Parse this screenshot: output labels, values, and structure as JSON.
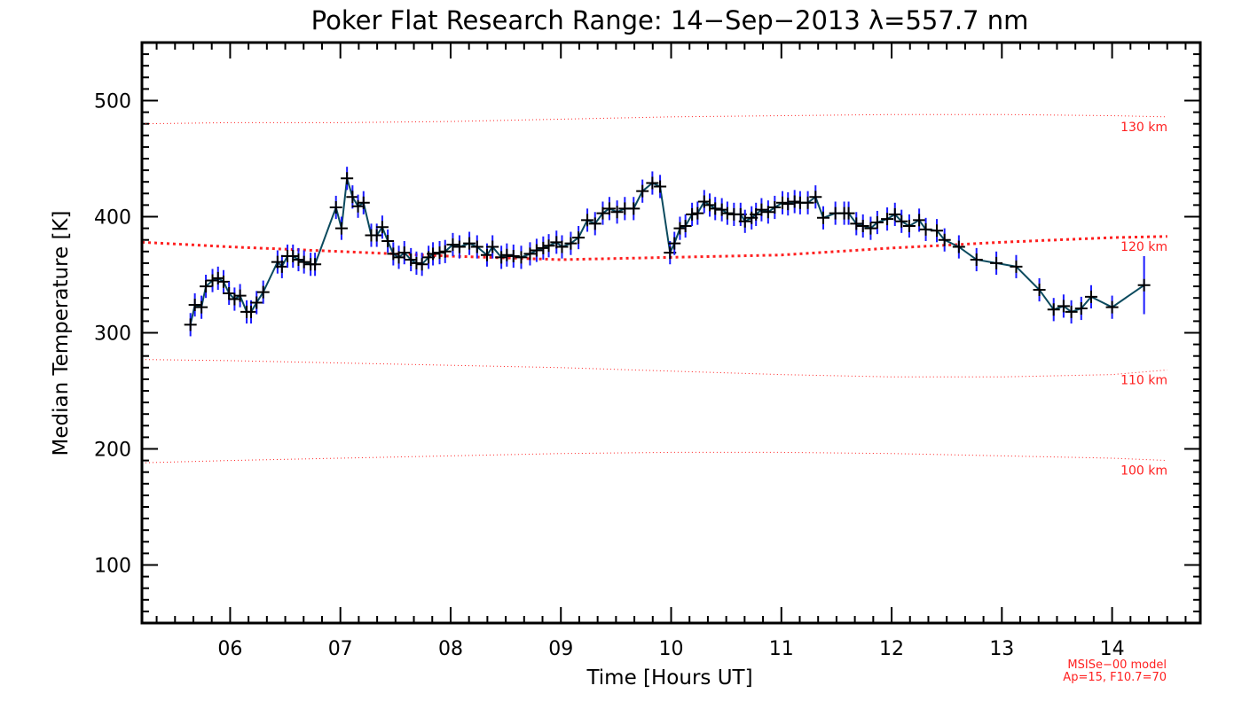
{
  "chart_data": {
    "type": "line",
    "title": "Poker Flat Research Range: 14−Sep−2013 λ=557.7 nm",
    "xlabel": "Time [Hours UT]",
    "ylabel": "Median Temperature [K]",
    "xlim": [
      5.2,
      14.8
    ],
    "ylim": [
      50,
      550
    ],
    "xticks": [
      6,
      7,
      8,
      9,
      10,
      11,
      12,
      13,
      14
    ],
    "xtick_labels": [
      "06",
      "07",
      "08",
      "09",
      "10",
      "11",
      "12",
      "13",
      "14"
    ],
    "yticks": [
      100,
      200,
      300,
      400,
      500
    ],
    "ytick_labels": [
      "100",
      "200",
      "300",
      "400",
      "500"
    ],
    "grid": false,
    "colors": {
      "data_line": "#0b4a5e",
      "marker": "#000000",
      "errorbar": "#1a1aff",
      "model": "#ff2020"
    },
    "series": [
      {
        "name": "Median Temperature",
        "x": [
          5.64,
          5.68,
          5.74,
          5.78,
          5.84,
          5.89,
          5.94,
          5.99,
          6.04,
          6.09,
          6.15,
          6.19,
          6.24,
          6.3,
          6.43,
          6.47,
          6.52,
          6.57,
          6.62,
          6.67,
          6.73,
          6.77,
          6.96,
          7.01,
          7.06,
          7.11,
          7.16,
          7.21,
          7.28,
          7.33,
          7.38,
          7.43,
          7.48,
          7.53,
          7.58,
          7.64,
          7.69,
          7.74,
          7.8,
          7.84,
          7.9,
          7.95,
          8.02,
          8.08,
          8.17,
          8.24,
          8.33,
          8.38,
          8.46,
          8.51,
          8.57,
          8.64,
          8.72,
          8.78,
          8.84,
          8.89,
          8.96,
          9.01,
          9.09,
          9.16,
          9.24,
          9.31,
          9.38,
          9.44,
          9.51,
          9.58,
          9.66,
          9.74,
          9.83,
          9.9,
          9.99,
          10.03,
          10.08,
          10.13,
          10.19,
          10.24,
          10.3,
          10.35,
          10.4,
          10.46,
          10.51,
          10.57,
          10.63,
          10.67,
          10.73,
          10.77,
          10.82,
          10.88,
          10.94,
          11.01,
          11.06,
          11.12,
          11.17,
          11.24,
          11.31,
          11.38,
          11.49,
          11.57,
          11.61,
          11.68,
          11.74,
          11.81,
          11.87,
          11.96,
          12.03,
          12.09,
          12.16,
          12.25,
          12.31,
          12.41,
          12.48,
          12.61,
          12.77,
          12.95,
          13.13,
          13.34,
          13.47,
          13.56,
          13.63,
          13.72,
          13.81,
          14.0,
          14.29
        ],
        "y": [
          307,
          324,
          322,
          340,
          345,
          347,
          344,
          334,
          329,
          332,
          318,
          318,
          326,
          335,
          361,
          357,
          366,
          366,
          363,
          361,
          359,
          359,
          408,
          390,
          433,
          417,
          409,
          412,
          384,
          384,
          391,
          379,
          368,
          365,
          369,
          363,
          360,
          359,
          365,
          368,
          369,
          370,
          376,
          374,
          377,
          374,
          367,
          374,
          365,
          367,
          366,
          365,
          368,
          371,
          373,
          375,
          378,
          374,
          377,
          382,
          397,
          394,
          403,
          407,
          404,
          407,
          407,
          422,
          429,
          426,
          369,
          377,
          390,
          392,
          402,
          403,
          413,
          410,
          407,
          406,
          403,
          402,
          402,
          396,
          399,
          402,
          406,
          404,
          408,
          412,
          411,
          413,
          412,
          412,
          417,
          399,
          403,
          403,
          403,
          394,
          392,
          390,
          395,
          398,
          402,
          396,
          392,
          397,
          389,
          388,
          380,
          374,
          363,
          360,
          357,
          337,
          320,
          323,
          318,
          321,
          331,
          322,
          341
        ],
        "yerr": [
          10,
          10,
          10,
          10,
          10,
          10,
          10,
          10,
          10,
          10,
          10,
          10,
          10,
          10,
          10,
          10,
          10,
          10,
          10,
          10,
          10,
          10,
          10,
          10,
          10,
          10,
          10,
          10,
          10,
          10,
          10,
          10,
          10,
          10,
          10,
          10,
          10,
          10,
          10,
          10,
          10,
          10,
          10,
          10,
          10,
          10,
          10,
          10,
          10,
          10,
          10,
          10,
          10,
          10,
          10,
          10,
          10,
          10,
          10,
          10,
          10,
          10,
          10,
          10,
          10,
          10,
          10,
          10,
          10,
          10,
          10,
          10,
          10,
          10,
          10,
          10,
          10,
          10,
          10,
          10,
          10,
          10,
          10,
          10,
          10,
          10,
          10,
          10,
          10,
          10,
          10,
          10,
          10,
          10,
          10,
          10,
          10,
          10,
          10,
          10,
          10,
          10,
          10,
          10,
          10,
          10,
          10,
          10,
          10,
          10,
          10,
          10,
          10,
          10,
          10,
          10,
          10,
          10,
          10,
          10,
          10,
          10,
          25
        ]
      }
    ],
    "model_curves": {
      "x": [
        5.2,
        6,
        7,
        8,
        9,
        10,
        11,
        12,
        13,
        14,
        14.5
      ],
      "curves": [
        {
          "label": "130 km",
          "y": [
            480,
            481,
            481,
            482,
            484,
            486,
            487,
            488,
            488,
            487,
            486
          ]
        },
        {
          "label": "120 km",
          "y": [
            378,
            374,
            370,
            366,
            363,
            365,
            367,
            373,
            378,
            382,
            383
          ]
        },
        {
          "label": "110 km",
          "y": [
            277,
            276,
            274,
            272,
            270,
            267,
            264,
            262,
            262,
            264,
            268
          ]
        },
        {
          "label": "100 km",
          "y": [
            188,
            190,
            192,
            194,
            196,
            197,
            197,
            196,
            194,
            192,
            190
          ]
        }
      ]
    },
    "annotations": [
      "MSISe−00 model",
      "Ap=15, F10.7=70"
    ]
  }
}
